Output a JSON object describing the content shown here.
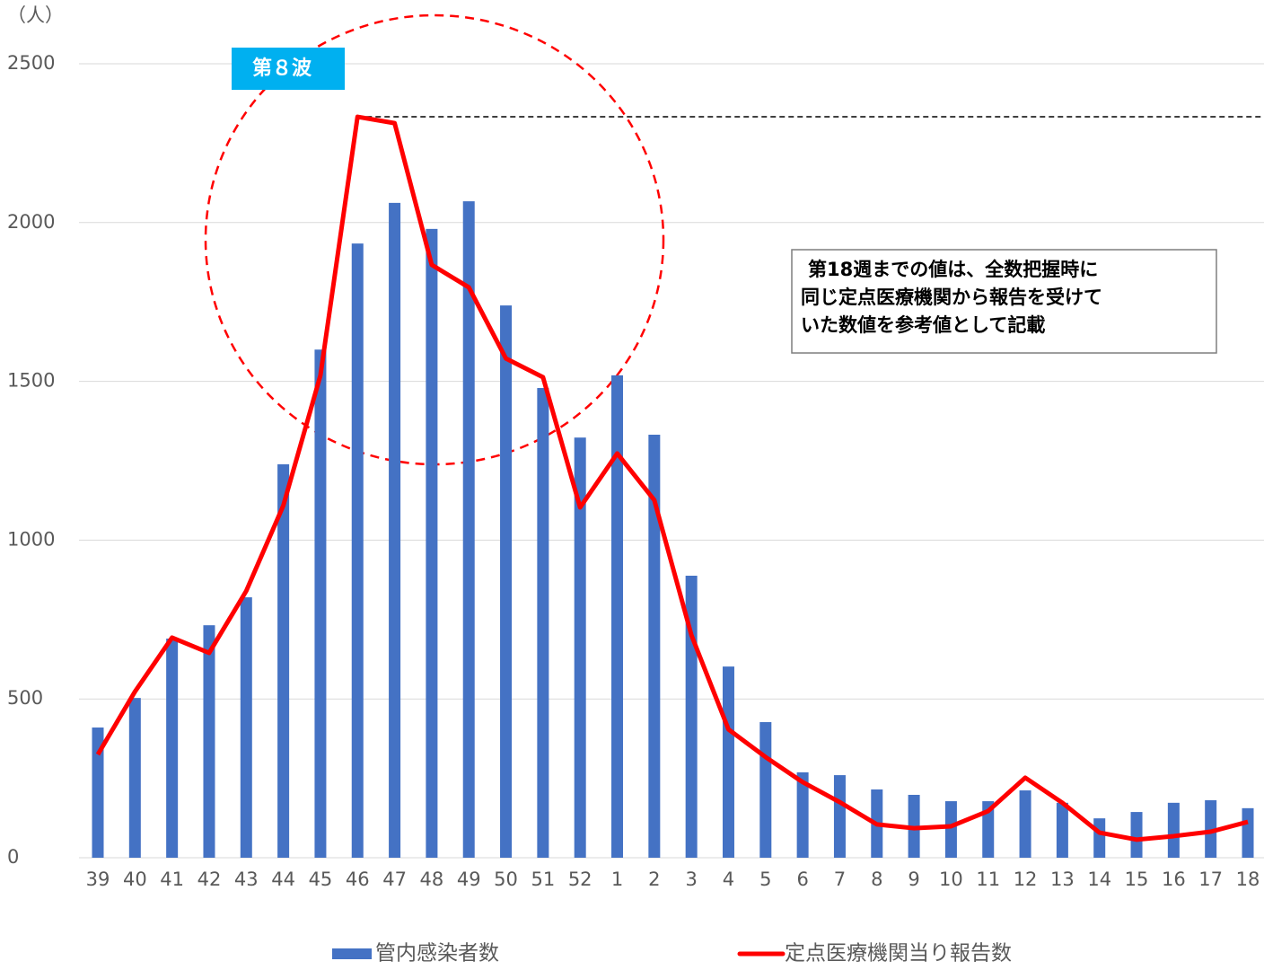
{
  "chart_data": {
    "type": "bar_line",
    "unit_label": "（人）",
    "wave_label": "第８波",
    "note": [
      "第18週までの値は、全数把握時に",
      "同じ定点医療機関から報告を受けて",
      "いた数値を参考値として記載"
    ],
    "categories": [
      "39",
      "40",
      "41",
      "42",
      "43",
      "44",
      "45",
      "46",
      "47",
      "48",
      "49",
      "50",
      "51",
      "52",
      "1",
      "2",
      "3",
      "4",
      "5",
      "6",
      "7",
      "8",
      "9",
      "10",
      "11",
      "12",
      "13",
      "14",
      "15",
      "16",
      "17",
      "18"
    ],
    "series": [
      {
        "name": "管内感染者数",
        "type": "bar",
        "color": "#4472c4",
        "values": [
          410,
          503,
          690,
          732,
          820,
          1239,
          1600,
          1934,
          2062,
          1980,
          2067,
          1739,
          1479,
          1323,
          1519,
          1332,
          888,
          602,
          427,
          269,
          260,
          215,
          198,
          178,
          178,
          212,
          173,
          124,
          144,
          173,
          181,
          156
        ]
      },
      {
        "name": "定点医療機関当り報告数",
        "type": "line",
        "color": "#ff0000",
        "values": [
          325,
          523,
          693,
          645,
          840,
          1109,
          1519,
          2333,
          2313,
          1867,
          1796,
          1572,
          1513,
          1103,
          1273,
          1126,
          701,
          404,
          317,
          238,
          175,
          105,
          93,
          99,
          147,
          252,
          173,
          79,
          57,
          68,
          82,
          113
        ]
      }
    ],
    "ylim": [
      0,
      2500
    ],
    "yticks": [
      0,
      500,
      1000,
      1500,
      2000,
      2500
    ],
    "grid": true
  }
}
